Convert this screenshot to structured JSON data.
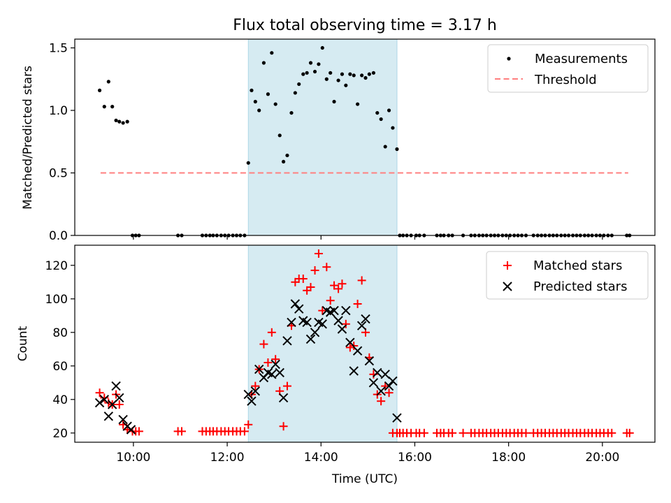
{
  "chart_data": [
    {
      "type": "scatter",
      "title": "Flux total observing time = 3.17 h",
      "xlabel": "",
      "ylabel": "Matched/Predicted stars",
      "xlim_hours": [
        8.75,
        21.12
      ],
      "ylim": [
        0,
        1.57
      ],
      "yticks": [
        0.0,
        0.5,
        1.0,
        1.5
      ],
      "ytick_labels": [
        "0.0",
        "0.5",
        "1.0",
        "1.5"
      ],
      "shaded_region_hours": [
        12.45,
        15.62
      ],
      "shade_color": "#add8e6",
      "legend_position": "upper right",
      "threshold": {
        "name": "Threshold",
        "value": 0.5,
        "x_range_hours": [
          9.3,
          20.55
        ],
        "color": "#ff7f7f"
      },
      "series": [
        {
          "name": "Measurements",
          "color": "#000000",
          "x_hours": [
            9.28,
            9.38,
            9.47,
            9.55,
            9.63,
            9.7,
            9.78,
            9.87,
            9.98,
            10.05,
            10.12,
            10.95,
            11.03,
            11.47,
            11.55,
            11.63,
            11.7,
            11.78,
            11.87,
            11.95,
            12.03,
            12.12,
            12.2,
            12.28,
            12.37,
            12.45,
            12.52,
            12.6,
            12.68,
            12.78,
            12.87,
            12.95,
            13.03,
            13.12,
            13.2,
            13.28,
            13.37,
            13.45,
            13.53,
            13.62,
            13.7,
            13.78,
            13.87,
            13.95,
            14.03,
            14.12,
            14.2,
            14.28,
            14.37,
            14.45,
            14.53,
            14.62,
            14.7,
            14.78,
            14.87,
            14.95,
            15.03,
            15.12,
            15.2,
            15.28,
            15.37,
            15.45,
            15.53,
            15.62,
            15.68,
            15.75,
            15.83,
            15.92,
            16.03,
            16.1,
            16.2,
            16.47,
            16.55,
            16.62,
            16.72,
            16.8,
            17.03,
            17.2,
            17.28,
            17.37,
            17.45,
            17.53,
            17.62,
            17.7,
            17.78,
            17.87,
            17.95,
            18.03,
            18.12,
            18.2,
            18.28,
            18.37,
            18.53,
            18.62,
            18.7,
            18.78,
            18.87,
            18.95,
            19.03,
            19.12,
            19.2,
            19.28,
            19.37,
            19.45,
            19.53,
            19.62,
            19.7,
            19.78,
            19.87,
            19.95,
            20.03,
            20.12,
            20.2,
            20.52,
            20.58
          ],
          "y": [
            1.16,
            1.03,
            1.23,
            1.03,
            0.92,
            0.91,
            0.9,
            0.91,
            0,
            0,
            0,
            0,
            0,
            0,
            0,
            0,
            0,
            0,
            0,
            0,
            0,
            0,
            0,
            0,
            0,
            0.58,
            1.16,
            1.07,
            1.0,
            1.38,
            1.13,
            1.46,
            1.05,
            0.8,
            0.59,
            0.64,
            0.98,
            1.14,
            1.21,
            1.29,
            1.3,
            1.38,
            1.31,
            1.37,
            1.5,
            1.25,
            1.3,
            1.07,
            1.24,
            1.29,
            1.2,
            1.29,
            1.28,
            1.05,
            1.28,
            1.26,
            1.29,
            1.3,
            0.98,
            0.93,
            0.71,
            1.0,
            0.86,
            0.69,
            0,
            0,
            0,
            0,
            0,
            0,
            0,
            0,
            0,
            0,
            0,
            0,
            0,
            0,
            0,
            0,
            0,
            0,
            0,
            0,
            0,
            0,
            0,
            0,
            0,
            0,
            0,
            0,
            0,
            0,
            0,
            0,
            0,
            0,
            0,
            0,
            0,
            0,
            0,
            0,
            0,
            0,
            0,
            0,
            0,
            0,
            0,
            0,
            0,
            0,
            0
          ]
        }
      ]
    },
    {
      "type": "scatter",
      "title": "",
      "xlabel": "Time (UTC)",
      "ylabel": "Count",
      "xlim_hours": [
        8.75,
        21.12
      ],
      "xticks_hours": [
        10,
        12,
        14,
        16,
        18,
        20
      ],
      "xtick_labels": [
        "10:00",
        "12:00",
        "14:00",
        "16:00",
        "18:00",
        "20:00"
      ],
      "ylim": [
        14.5,
        132
      ],
      "yticks": [
        20,
        40,
        60,
        80,
        100,
        120
      ],
      "ytick_labels": [
        "20",
        "40",
        "60",
        "80",
        "100",
        "120"
      ],
      "shaded_region_hours": [
        12.45,
        15.62
      ],
      "shade_color": "#add8e6",
      "legend_position": "upper right",
      "series": [
        {
          "name": "Matched stars",
          "marker": "plus",
          "color": "#ff0000",
          "x_hours": [
            9.28,
            9.38,
            9.47,
            9.55,
            9.63,
            9.7,
            9.78,
            9.87,
            9.98,
            10.05,
            10.12,
            10.95,
            11.03,
            11.47,
            11.55,
            11.63,
            11.7,
            11.78,
            11.87,
            11.95,
            12.03,
            12.12,
            12.2,
            12.28,
            12.37,
            12.45,
            12.52,
            12.6,
            12.68,
            12.78,
            12.87,
            12.95,
            13.03,
            13.12,
            13.2,
            13.28,
            13.37,
            13.45,
            13.53,
            13.62,
            13.7,
            13.78,
            13.87,
            13.95,
            14.03,
            14.12,
            14.2,
            14.28,
            14.37,
            14.45,
            14.53,
            14.62,
            14.7,
            14.78,
            14.87,
            14.95,
            15.03,
            15.12,
            15.2,
            15.28,
            15.37,
            15.45,
            15.53,
            15.62,
            15.68,
            15.75,
            15.83,
            15.92,
            16.03,
            16.1,
            16.2,
            16.47,
            16.55,
            16.62,
            16.72,
            16.8,
            17.03,
            17.2,
            17.28,
            17.37,
            17.45,
            17.53,
            17.62,
            17.7,
            17.78,
            17.87,
            17.95,
            18.03,
            18.12,
            18.2,
            18.28,
            18.37,
            18.53,
            18.62,
            18.7,
            18.78,
            18.87,
            18.95,
            19.03,
            19.12,
            19.2,
            19.28,
            19.37,
            19.45,
            19.53,
            19.62,
            19.7,
            19.78,
            19.87,
            19.95,
            20.03,
            20.12,
            20.2,
            20.52,
            20.58
          ],
          "y": [
            44,
            41,
            38,
            37,
            43,
            37,
            25,
            22,
            21,
            21,
            21,
            21,
            21,
            21,
            21,
            21,
            21,
            21,
            21,
            21,
            21,
            21,
            21,
            21,
            21,
            25,
            43,
            48,
            58,
            73,
            62,
            80,
            64,
            45,
            24,
            48,
            84,
            110,
            112,
            112,
            105,
            107,
            117,
            127,
            93,
            119,
            99,
            108,
            106,
            109,
            85,
            71,
            72,
            97,
            111,
            80,
            65,
            55,
            43,
            39,
            48,
            44,
            20,
            20,
            20,
            20,
            20,
            20,
            20,
            20,
            20,
            20,
            20,
            20,
            20,
            20,
            20,
            20,
            20,
            20,
            20,
            20,
            20,
            20,
            20,
            20,
            20,
            20,
            20,
            20,
            20,
            20,
            20,
            20,
            20,
            20,
            20,
            20,
            20,
            20,
            20,
            20,
            20,
            20,
            20,
            20,
            20,
            20,
            20,
            20,
            20,
            20,
            20,
            20,
            20
          ]
        },
        {
          "name": "Predicted stars",
          "marker": "x",
          "color": "#000000",
          "x_hours": [
            9.28,
            9.38,
            9.47,
            9.55,
            9.63,
            9.7,
            9.78,
            9.87,
            9.95,
            12.45,
            12.52,
            12.6,
            12.68,
            12.78,
            12.87,
            12.95,
            13.03,
            13.12,
            13.2,
            13.28,
            13.37,
            13.45,
            13.53,
            13.62,
            13.7,
            13.78,
            13.87,
            13.95,
            14.03,
            14.12,
            14.2,
            14.28,
            14.37,
            14.45,
            14.53,
            14.62,
            14.7,
            14.78,
            14.87,
            14.95,
            15.03,
            15.12,
            15.2,
            15.28,
            15.37,
            15.45,
            15.53,
            15.62
          ],
          "y": [
            38,
            40,
            30,
            37,
            48,
            41,
            28,
            24,
            22,
            43,
            39,
            45,
            58,
            53,
            56,
            55,
            61,
            56,
            41,
            75,
            86,
            97,
            94,
            87,
            86,
            76,
            80,
            86,
            85,
            93,
            92,
            93,
            87,
            82,
            93,
            74,
            57,
            69,
            84,
            88,
            63,
            50,
            56,
            45,
            55,
            48,
            51,
            29
          ]
        }
      ]
    }
  ]
}
